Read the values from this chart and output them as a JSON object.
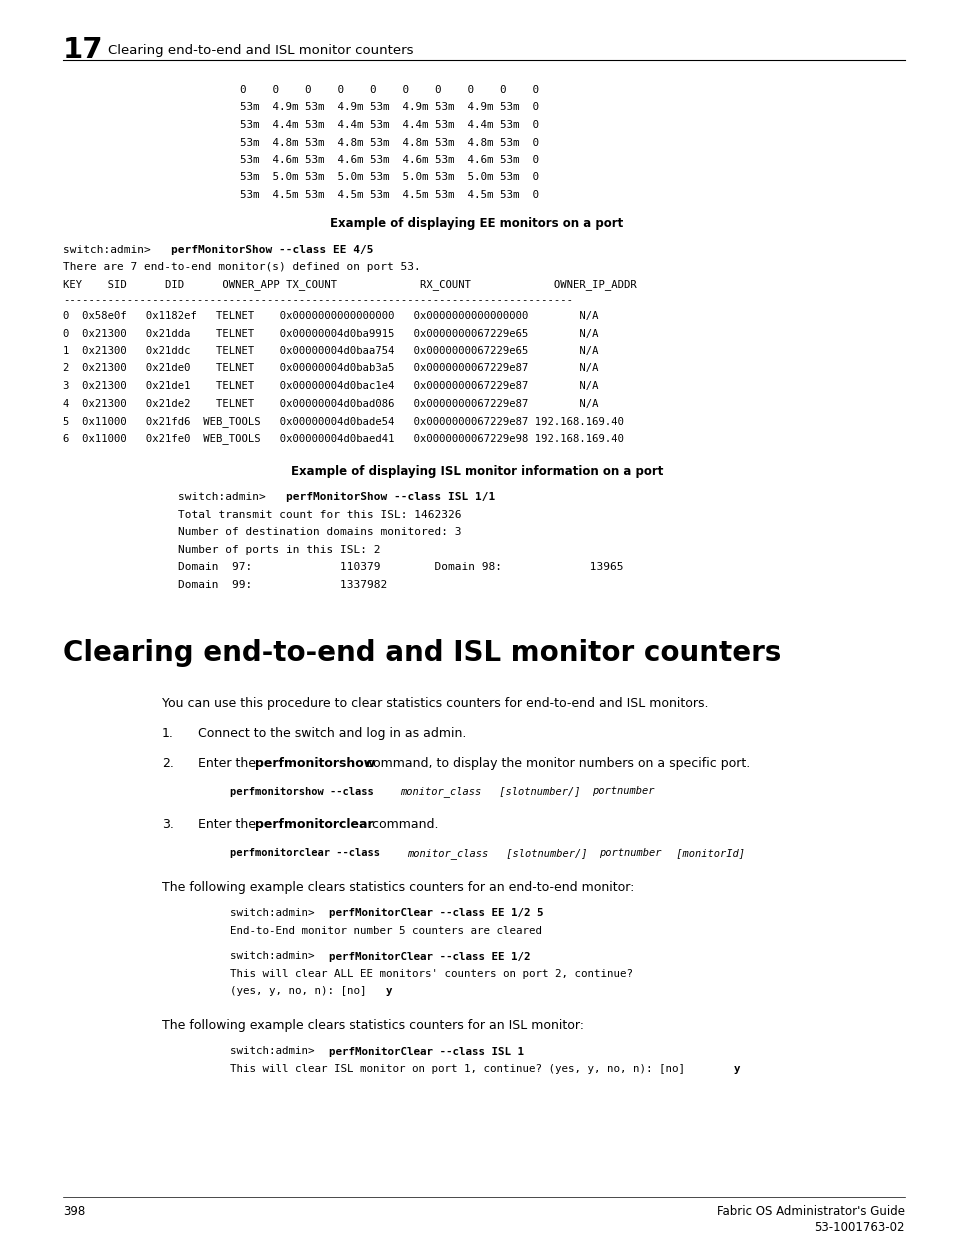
{
  "bg_color": "#ffffff",
  "page_width": 9.54,
  "page_height": 12.35,
  "header_chapter": "17",
  "header_text": "Clearing end-to-end and ISL monitor counters",
  "footer_page": "398",
  "footer_right1": "Fabric OS Administrator's Guide",
  "footer_right2": "53-1001763-02",
  "code_block1": [
    "0    0    0    0    0    0    0    0    0    0",
    "53m  4.9m 53m  4.9m 53m  4.9m 53m  4.9m 53m  0",
    "53m  4.4m 53m  4.4m 53m  4.4m 53m  4.4m 53m  0",
    "53m  4.8m 53m  4.8m 53m  4.8m 53m  4.8m 53m  0",
    "53m  4.6m 53m  4.6m 53m  4.6m 53m  4.6m 53m  0",
    "53m  5.0m 53m  5.0m 53m  5.0m 53m  5.0m 53m  0",
    "53m  4.5m 53m  4.5m 53m  4.5m 53m  4.5m 53m  0"
  ],
  "section_title": "Clearing end-to-end and ISL monitor counters"
}
